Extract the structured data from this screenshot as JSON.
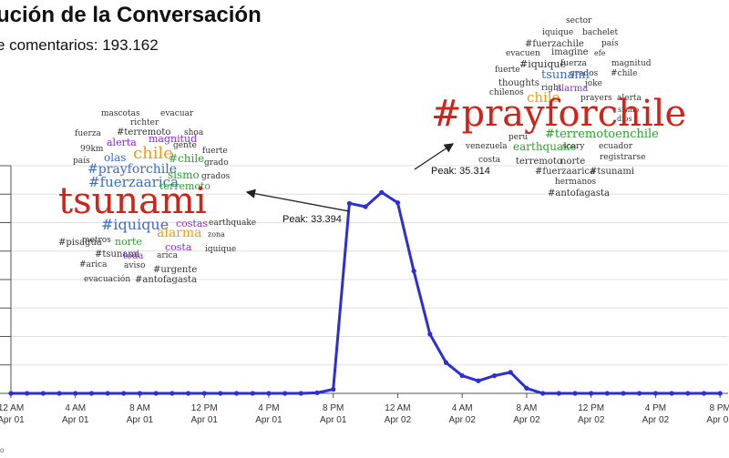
{
  "header": {
    "title": "ución de la Conversación",
    "subtitle": "e comentarios: 193.162"
  },
  "colors": {
    "line": "#2b2fd4",
    "arrow": "#222222",
    "grid": "#e0e0e0"
  },
  "annotations": {
    "peak1": "Peak: 33.394",
    "peak2": "Peak: 35.314"
  },
  "footer": {
    "mark": "o"
  },
  "chart_data": {
    "type": "line",
    "title": "ución de la Conversación",
    "x_unit": "hours from Apr 01 12 AM",
    "tick_labels": [
      [
        "12 AM",
        "Apr 01"
      ],
      [
        "4 AM",
        "Apr 01"
      ],
      [
        "8 AM",
        "Apr 01"
      ],
      [
        "12 PM",
        "Apr 01"
      ],
      [
        "4 PM",
        "Apr 01"
      ],
      [
        "8 PM",
        "Apr 01"
      ],
      [
        "12 AM",
        "Apr 02"
      ],
      [
        "4 AM",
        "Apr 02"
      ],
      [
        "8 AM",
        "Apr 02"
      ],
      [
        "12 PM",
        "Apr 02"
      ],
      [
        "4 PM",
        "Apr 02"
      ],
      [
        "8 PM",
        "Apr 02"
      ]
    ],
    "tick_x": [
      0,
      8,
      16,
      24,
      32,
      40,
      48,
      56,
      64,
      72,
      80,
      88
    ],
    "ylim": [
      0,
      40000
    ],
    "xlim": [
      0,
      89
    ],
    "x": [
      0,
      2,
      4,
      6,
      8,
      10,
      12,
      14,
      16,
      18,
      20,
      22,
      24,
      26,
      28,
      30,
      32,
      34,
      36,
      38,
      40,
      42,
      44,
      46,
      48,
      50,
      52,
      54,
      56,
      58,
      60,
      62,
      64,
      66,
      68,
      70,
      72,
      74,
      76,
      78,
      80,
      82,
      84,
      86,
      88
    ],
    "y": [
      0,
      0,
      0,
      0,
      0,
      0,
      0,
      0,
      0,
      0,
      0,
      0,
      0,
      0,
      0,
      0,
      0,
      0,
      0,
      100,
      700,
      33394,
      32800,
      35314,
      33500,
      21500,
      10400,
      5400,
      3100,
      2200,
      3100,
      3700,
      900,
      0,
      0,
      0,
      0,
      0,
      0,
      0,
      0,
      0,
      0,
      0,
      0
    ]
  },
  "cloud_left": {
    "words": [
      {
        "t": "mascotas",
        "c": "#333333",
        "s": 9
      },
      {
        "t": "evacuar",
        "c": "#333333",
        "s": 9
      },
      {
        "t": "richter",
        "c": "#333333",
        "s": 9
      },
      {
        "t": "fuerza",
        "c": "#333333",
        "s": 9
      },
      {
        "t": "#terremoto",
        "c": "#333333",
        "s": 10
      },
      {
        "t": "shoa",
        "c": "#333333",
        "s": 9
      },
      {
        "t": "alerta",
        "c": "#8a2be2",
        "s": 11
      },
      {
        "t": "magnitud",
        "c": "#8a2be2",
        "s": 11
      },
      {
        "t": "99km",
        "c": "#333333",
        "s": 9
      },
      {
        "t": "gente",
        "c": "#333333",
        "s": 9
      },
      {
        "t": "fuerte",
        "c": "#333333",
        "s": 9
      },
      {
        "t": "chile",
        "c": "#f39c12",
        "s": 18
      },
      {
        "t": "país",
        "c": "#333333",
        "s": 9
      },
      {
        "t": "olas",
        "c": "#3a6bd4",
        "s": 12
      },
      {
        "t": "#chile",
        "c": "#2ca02c",
        "s": 12
      },
      {
        "t": "grado",
        "c": "#333333",
        "s": 9
      },
      {
        "t": "#prayforchile",
        "c": "#3a6bd4",
        "s": 14
      },
      {
        "t": "sismo",
        "c": "#2ca02c",
        "s": 12
      },
      {
        "t": "grados",
        "c": "#333333",
        "s": 9
      },
      {
        "t": "#fuerzaarica",
        "c": "#3a6bd4",
        "s": 15
      },
      {
        "t": "terremoto",
        "c": "#2ca02c",
        "s": 11
      },
      {
        "t": "tsunami",
        "c": "#d0241b",
        "s": 40
      },
      {
        "t": "#iquique",
        "c": "#3a6bd4",
        "s": 16
      },
      {
        "t": "costas",
        "c": "#8a2be2",
        "s": 11
      },
      {
        "t": "earthquake",
        "c": "#333333",
        "s": 9
      },
      {
        "t": "#pisagua",
        "c": "#333333",
        "s": 10
      },
      {
        "t": "alarma",
        "c": "#f39c12",
        "s": 14
      },
      {
        "t": "zona",
        "c": "#333333",
        "s": 8
      },
      {
        "t": "metros",
        "c": "#333333",
        "s": 9
      },
      {
        "t": "norte",
        "c": "#2ca02c",
        "s": 11
      },
      {
        "t": "costa",
        "c": "#8a2be2",
        "s": 11
      },
      {
        "t": "iquique",
        "c": "#333333",
        "s": 9
      },
      {
        "t": "#tsunami",
        "c": "#333333",
        "s": 10
      },
      {
        "t": "toda",
        "c": "#8a2be2",
        "s": 10
      },
      {
        "t": "arica",
        "c": "#333333",
        "s": 9
      },
      {
        "t": "#arica",
        "c": "#333333",
        "s": 9
      },
      {
        "t": "aviso",
        "c": "#333333",
        "s": 9
      },
      {
        "t": "#urgente",
        "c": "#333333",
        "s": 10
      },
      {
        "t": "evacuación",
        "c": "#333333",
        "s": 9
      },
      {
        "t": "#antofagasta",
        "c": "#333333",
        "s": 10
      }
    ]
  },
  "cloud_right": {
    "words": [
      {
        "t": "sector",
        "c": "#333333",
        "s": 9
      },
      {
        "t": "iquique",
        "c": "#333333",
        "s": 9
      },
      {
        "t": "bachelet",
        "c": "#333333",
        "s": 9
      },
      {
        "t": "#fuerzachile",
        "c": "#333333",
        "s": 10
      },
      {
        "t": "país",
        "c": "#333333",
        "s": 9
      },
      {
        "t": "evacuen",
        "c": "#333333",
        "s": 9
      },
      {
        "t": "imagine",
        "c": "#333333",
        "s": 10
      },
      {
        "t": "efe",
        "c": "#333333",
        "s": 8
      },
      {
        "t": "magnitud",
        "c": "#333333",
        "s": 9
      },
      {
        "t": "#iquique",
        "c": "#333333",
        "s": 11
      },
      {
        "t": "fuerza",
        "c": "#333333",
        "s": 9
      },
      {
        "t": "fuerte",
        "c": "#333333",
        "s": 9
      },
      {
        "t": "grados",
        "c": "#333333",
        "s": 9
      },
      {
        "t": "#chile",
        "c": "#333333",
        "s": 9
      },
      {
        "t": "tsunami",
        "c": "#3a6bd4",
        "s": 13
      },
      {
        "t": "thoughts",
        "c": "#333333",
        "s": 10
      },
      {
        "t": "joke",
        "c": "#333333",
        "s": 9
      },
      {
        "t": "right",
        "c": "#333333",
        "s": 9
      },
      {
        "t": "alarma",
        "c": "#8a2be2",
        "s": 10
      },
      {
        "t": "chilenos",
        "c": "#333333",
        "s": 9
      },
      {
        "t": "chile",
        "c": "#f39c12",
        "s": 15
      },
      {
        "t": "prayers",
        "c": "#333333",
        "s": 9
      },
      {
        "t": "alerta",
        "c": "#333333",
        "s": 9
      },
      {
        "t": "sismo",
        "c": "#333333",
        "s": 8
      },
      {
        "t": "dios",
        "c": "#333333",
        "s": 8
      },
      {
        "t": "#prayforchile",
        "c": "#d0241b",
        "s": 40
      },
      {
        "t": "perú",
        "c": "#333333",
        "s": 9
      },
      {
        "t": "#terremotoenchile",
        "c": "#2ca02c",
        "s": 13
      },
      {
        "t": "venezuela",
        "c": "#333333",
        "s": 9
      },
      {
        "t": "earthquake",
        "c": "#2ca02c",
        "s": 12
      },
      {
        "t": "scary",
        "c": "#333333",
        "s": 9
      },
      {
        "t": "ecuador",
        "c": "#333333",
        "s": 9
      },
      {
        "t": "costa",
        "c": "#333333",
        "s": 9
      },
      {
        "t": "terremoto",
        "c": "#333333",
        "s": 10
      },
      {
        "t": "norte",
        "c": "#333333",
        "s": 10
      },
      {
        "t": "registrarse",
        "c": "#333333",
        "s": 9
      },
      {
        "t": "#fuerzaarica",
        "c": "#333333",
        "s": 10
      },
      {
        "t": "#tsunami",
        "c": "#333333",
        "s": 10
      },
      {
        "t": "hermanos",
        "c": "#333333",
        "s": 9
      },
      {
        "t": "#antofagasta",
        "c": "#333333",
        "s": 10
      }
    ]
  }
}
